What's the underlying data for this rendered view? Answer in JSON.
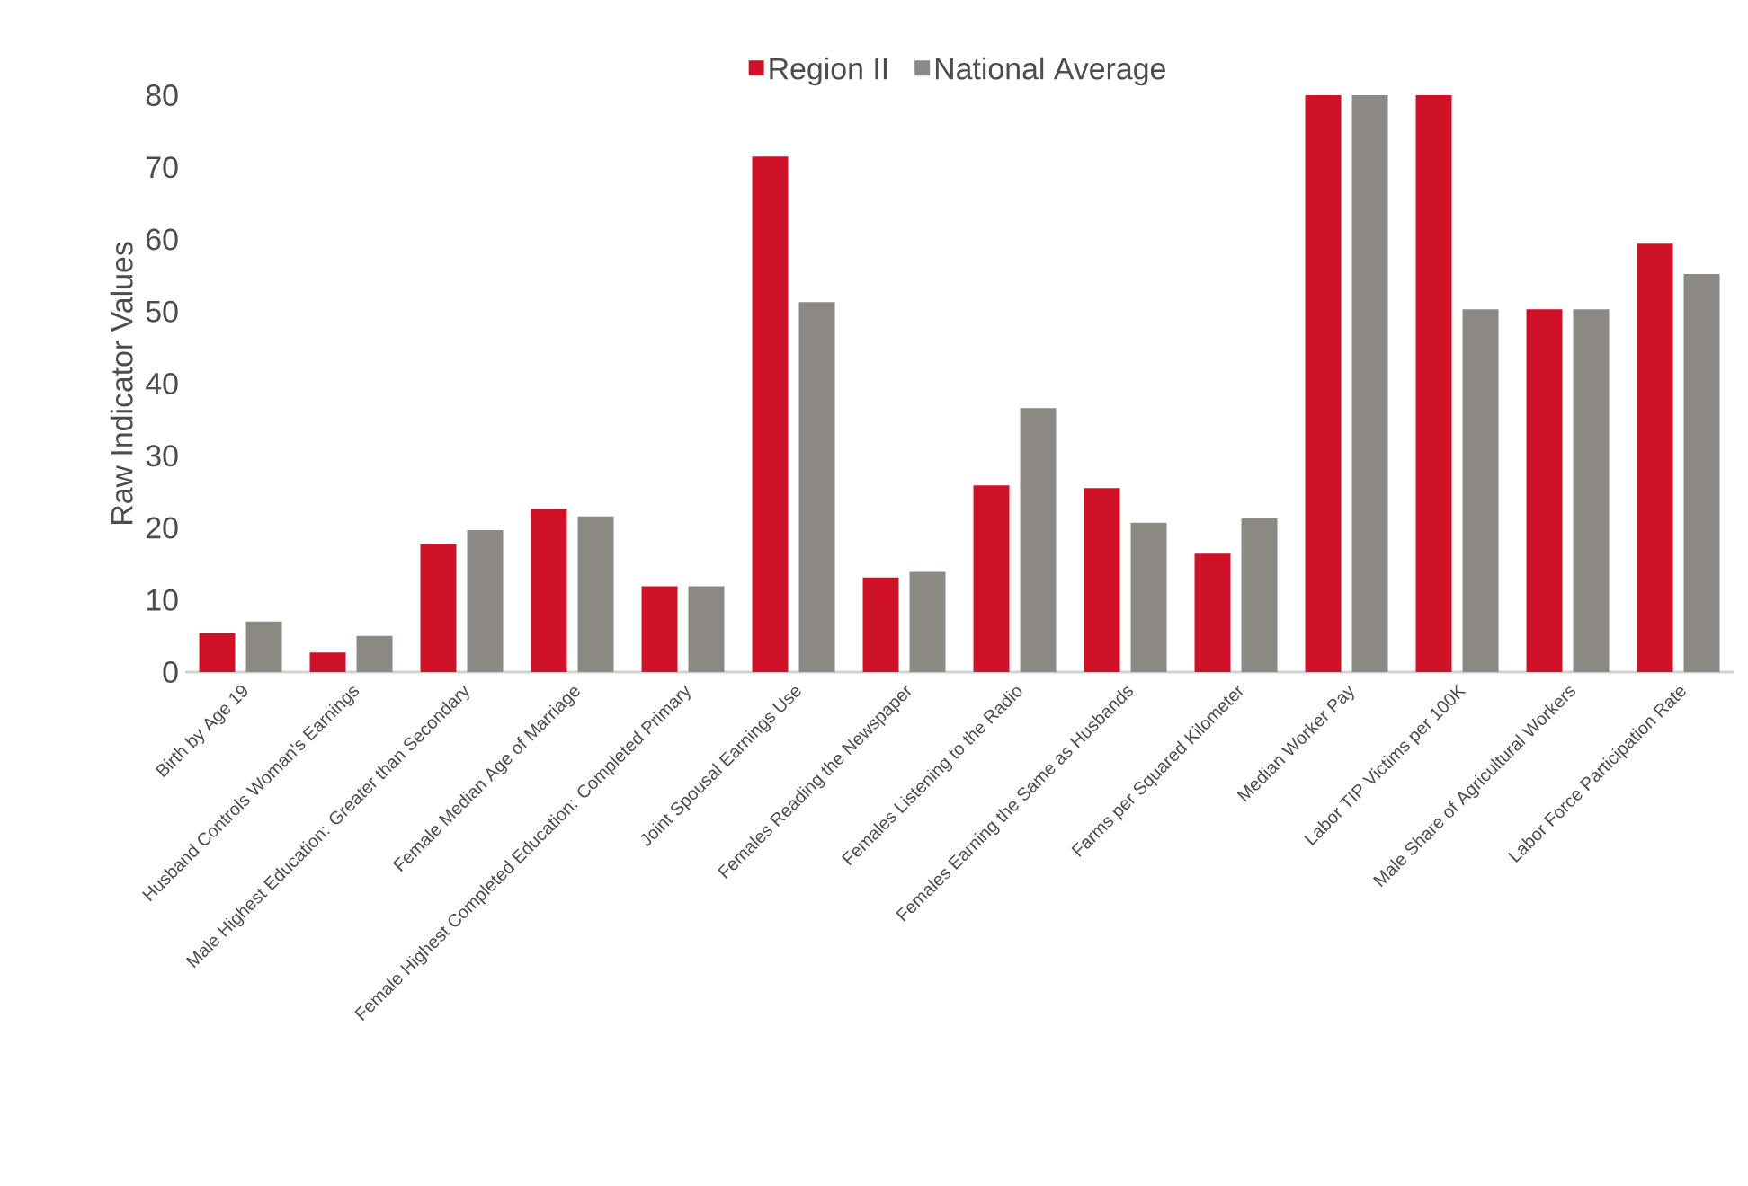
{
  "chart_data": {
    "type": "bar",
    "ylabel": "Raw Indicator Values",
    "categories": [
      "Birth by Age 19",
      "Husband Controls Woman's Earnings",
      "Male Highest Education: Greater than Secondary",
      "Female Median Age of Marriage",
      "Female Highest Completed Education: Completed Primary",
      "Joint Spousal Earnings Use",
      "Females Reading the Newspaper",
      "Females Listening to the Radio",
      "Females Earning the Same as Husbands",
      "Farms per Squared Kilometer",
      "Median Worker Pay",
      "Labor TIP Victims per 100K",
      "Male Share of Agricultural Workers",
      "Labor Force Participation Rate"
    ],
    "series": [
      {
        "name": "Region II",
        "color": "#cf1228",
        "values": [
          5.4,
          2.7,
          17.7,
          22.6,
          11.9,
          71.5,
          13.1,
          25.9,
          25.5,
          16.4,
          80,
          80,
          50.3,
          59.4
        ]
      },
      {
        "name": "National Average",
        "color": "#8c8984",
        "values": [
          7.0,
          5.0,
          19.7,
          21.6,
          11.9,
          51.3,
          13.9,
          36.6,
          20.7,
          21.3,
          80,
          50.3,
          50.3,
          55.2
        ]
      }
    ],
    "ylim": [
      0,
      80
    ],
    "yticks": [
      0,
      10,
      20,
      30,
      40,
      50,
      60,
      70,
      80
    ],
    "grid": false,
    "legend": "top"
  }
}
